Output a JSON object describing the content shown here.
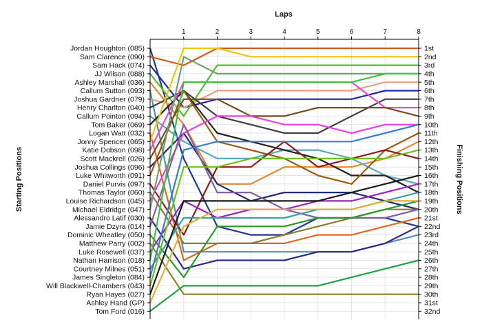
{
  "chart_data": {
    "type": "line",
    "title": "Laps",
    "ylabel_left": "Starting Positions",
    "ylabel_right": "Finishing Positions",
    "x": [
      0,
      1,
      2,
      3,
      4,
      5,
      6,
      7,
      8
    ],
    "x_tick_labels": [
      "1",
      "2",
      "3",
      "4",
      "5",
      "6",
      "7",
      "8"
    ],
    "xlim": [
      0,
      8
    ],
    "ylim": [
      1,
      32
    ],
    "y_inverted": true,
    "grid": true,
    "legend": "none",
    "starting_positions": [
      "Jordan Houghton (085)",
      "Sam Clarence (090)",
      "Sam Hack (074)",
      "JJ Wilson (088)",
      "Ashley Marshall (036)",
      "Callum Sutton (093)",
      "Joshua Gardner (079)",
      "Henry Charlton (040)",
      "Callum Pointon (094)",
      "Tom Baker (069)",
      "Logan Watt (032)",
      "Jonny Spencer (065)",
      "Katie Dobson (098)",
      "Scott Mackrell (026)",
      "Joshua Collings (096)",
      "Luke Whitworth (091)",
      "Daniel Purvis (097)",
      "Thomas Taylor (060)",
      "Louise Richardson (045)",
      "Michael Eldridge (047)",
      "Alessandro Latif (030)",
      "Jamie Dzyra (014)",
      "Dominic Wheatley (050)",
      "Matthew Parry (002)",
      "Luke Rosewell (037)",
      "Nathan Harrison (018)",
      "Courtney Milnes (051)",
      "James Singleton (084)",
      "Will Blackwell-Chambers (043)",
      "Ryan Hayes (027)",
      "Ashley Hand (GP)",
      "Tom Ford (016)"
    ],
    "finishing_positions": [
      "1st",
      "2nd",
      "3rd",
      "4th",
      "5th",
      "6th",
      "7th",
      "8th",
      "9th",
      "10th",
      "11th",
      "12th",
      "13th",
      "14th",
      "15th",
      "16th",
      "17th",
      "18th",
      "19th",
      "20th",
      "21st",
      "22nd",
      "23rd",
      "24th",
      "25th",
      "26th",
      "27th",
      "28th",
      "29th",
      "30th",
      "31st",
      "32nd"
    ],
    "series": [
      {
        "values": [
          1,
          14,
          22,
          23,
          23,
          21,
          21,
          21,
          22
        ],
        "color": "#1e3c8c"
      },
      {
        "values": [
          2,
          3,
          1,
          1,
          1,
          1,
          1,
          1,
          1
        ],
        "color": "#d45a1a"
      },
      {
        "values": [
          3,
          8,
          7,
          7,
          7,
          7,
          7,
          6,
          6
        ],
        "color": "#1e2aa8"
      },
      {
        "values": [
          4,
          9,
          3,
          3,
          3,
          3,
          3,
          3,
          3
        ],
        "color": "#4fbf2a"
      },
      {
        "values": [
          5,
          10,
          17,
          17,
          15,
          15,
          15,
          14,
          12
        ],
        "color": "#e08a2a"
      },
      {
        "values": [
          6,
          25,
          25,
          25,
          25,
          25,
          25,
          24,
          23
        ],
        "color": "#5090b0"
      },
      {
        "values": [
          7,
          8,
          6,
          6,
          6,
          6,
          6,
          5,
          5
        ],
        "color": "#e8a080"
      },
      {
        "values": [
          8,
          6,
          9,
          10,
          11,
          11,
          9,
          7,
          7
        ],
        "color": "#404040"
      },
      {
        "values": [
          9,
          12,
          14,
          14,
          13,
          13,
          14,
          16,
          17
        ],
        "color": "#5aa8c0"
      },
      {
        "values": [
          10,
          6,
          11,
          12,
          13,
          14,
          16,
          16,
          18
        ],
        "color": "#202020"
      },
      {
        "values": [
          11,
          26,
          24,
          24,
          24,
          23,
          23,
          22,
          21
        ],
        "color": "#e06820"
      },
      {
        "values": [
          12,
          1,
          1,
          2,
          2,
          2,
          2,
          2,
          2
        ],
        "color": "#e8c810"
      },
      {
        "values": [
          13,
          5,
          5,
          5,
          5,
          5,
          5,
          8,
          8
        ],
        "color": "#e84ad8"
      },
      {
        "values": [
          14,
          7,
          7,
          9,
          9,
          8,
          8,
          8,
          9
        ],
        "color": "#7a4a20"
      },
      {
        "values": [
          15,
          11,
          17,
          19,
          18,
          18,
          18,
          19,
          20
        ],
        "color": "#202870"
      },
      {
        "values": [
          16,
          6,
          12,
          13,
          14,
          16,
          17,
          13,
          11
        ],
        "color": "#9c5a10"
      },
      {
        "values": [
          17,
          23,
          15,
          15,
          12,
          15,
          14,
          13,
          14
        ],
        "color": "#8c1a1a"
      },
      {
        "values": [
          18,
          24,
          24,
          24,
          23,
          22,
          21,
          20,
          20
        ],
        "color": "#8c7a30"
      },
      {
        "values": [
          19,
          11,
          9,
          9,
          10,
          10,
          11,
          10,
          10
        ],
        "color": "#e840e0"
      },
      {
        "values": [
          20,
          2,
          4,
          4,
          4,
          4,
          4,
          4,
          4
        ],
        "color": "#70a070"
      },
      {
        "values": [
          21,
          27,
          26,
          26,
          26,
          25,
          25,
          24,
          22
        ],
        "color": "#2a2a8a"
      },
      {
        "values": [
          22,
          10,
          18,
          18,
          20,
          21,
          21,
          21,
          20
        ],
        "color": "#8060a0"
      },
      {
        "values": [
          23,
          28,
          22,
          22,
          22,
          21,
          21,
          20,
          19
        ],
        "color": "#2a9a2a"
      },
      {
        "values": [
          24,
          30,
          30,
          30,
          30,
          30,
          30,
          30,
          30
        ],
        "color": "#8c8030"
      },
      {
        "values": [
          25,
          19,
          21,
          20,
          20,
          19,
          19,
          18,
          17
        ],
        "color": "#a020c0"
      },
      {
        "values": [
          26,
          5,
          5,
          5,
          5,
          5,
          5,
          4,
          4
        ],
        "color": "#40c040"
      },
      {
        "values": [
          27,
          21,
          21,
          21,
          21,
          20,
          20,
          19,
          18
        ],
        "color": "#3aa0a0"
      },
      {
        "values": [
          28,
          13,
          12,
          12,
          12,
          12,
          12,
          11,
          10
        ],
        "color": "#3a7ad0"
      },
      {
        "values": [
          29,
          15,
          15,
          14,
          14,
          14,
          14,
          14,
          13
        ],
        "color": "#70c020"
      },
      {
        "values": [
          30,
          19,
          19,
          19,
          19,
          19,
          18,
          17,
          16
        ],
        "color": "#1a1a1a"
      },
      {
        "values": [
          31,
          22,
          20,
          20,
          20,
          20,
          20,
          19,
          19
        ],
        "color": "#e0b030"
      },
      {
        "values": [
          32,
          29,
          29,
          29,
          29,
          29,
          28,
          27,
          26
        ],
        "color": "#20a040"
      }
    ]
  }
}
